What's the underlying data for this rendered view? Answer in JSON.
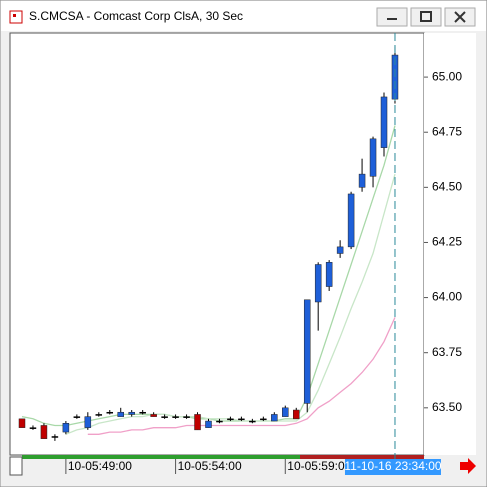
{
  "chart_data": {
    "type": "candlestick",
    "title": "S.CMCSA - Comcast Corp ClsA, 30 Sec",
    "categories": [
      null,
      null,
      null,
      null,
      "10-05:49:00",
      null,
      null,
      null,
      null,
      null,
      null,
      null,
      null,
      null,
      "10-05:54:00",
      null,
      null,
      null,
      null,
      null,
      null,
      null,
      null,
      null,
      "10-05:59:00",
      null,
      null,
      null,
      null,
      null,
      null,
      null,
      null,
      null,
      null
    ],
    "open": [
      63.45,
      63.41,
      63.42,
      63.37,
      63.39,
      63.46,
      63.41,
      63.47,
      63.48,
      63.46,
      63.47,
      63.48,
      63.47,
      63.46,
      63.46,
      63.46,
      63.47,
      63.41,
      63.44,
      63.45,
      63.45,
      63.44,
      63.45,
      63.44,
      63.46,
      63.49,
      63.52,
      63.98,
      64.05,
      64.2,
      64.23,
      64.5,
      64.55,
      64.68,
      64.9
    ],
    "high": [
      63.45,
      63.42,
      63.43,
      63.38,
      63.44,
      63.47,
      63.48,
      63.48,
      63.49,
      63.5,
      63.49,
      63.49,
      63.48,
      63.47,
      63.47,
      63.47,
      63.48,
      63.45,
      63.45,
      63.46,
      63.46,
      63.45,
      63.46,
      63.48,
      63.51,
      63.5,
      63.99,
      64.16,
      64.17,
      64.26,
      64.48,
      64.63,
      64.73,
      64.93,
      65.14
    ],
    "low": [
      63.41,
      63.4,
      63.36,
      63.35,
      63.38,
      63.45,
      63.4,
      63.46,
      63.47,
      63.46,
      63.46,
      63.47,
      63.46,
      63.45,
      63.45,
      63.45,
      63.4,
      63.41,
      63.43,
      63.44,
      63.44,
      63.43,
      63.44,
      63.44,
      63.46,
      63.45,
      63.48,
      63.85,
      64.03,
      64.18,
      64.22,
      64.48,
      64.5,
      64.64,
      64.88
    ],
    "close": [
      63.41,
      63.41,
      63.36,
      63.37,
      63.43,
      63.46,
      63.46,
      63.47,
      63.48,
      63.48,
      63.48,
      63.48,
      63.46,
      63.46,
      63.46,
      63.46,
      63.4,
      63.44,
      63.44,
      63.45,
      63.45,
      63.44,
      63.45,
      63.47,
      63.5,
      63.45,
      63.99,
      64.15,
      64.16,
      64.23,
      64.47,
      64.56,
      64.72,
      64.91,
      65.1
    ],
    "up_color": "#1e5fd8",
    "down_color": "#c00000",
    "moving_averages": [
      {
        "color": "#a8d8a8",
        "values": [
          63.46,
          63.45,
          63.43,
          63.42,
          63.42,
          63.43,
          63.44,
          63.45,
          63.46,
          63.47,
          63.47,
          63.47,
          63.47,
          63.47,
          63.46,
          63.46,
          63.45,
          63.45,
          63.44,
          63.44,
          63.44,
          63.44,
          63.44,
          63.44,
          63.45,
          63.45,
          63.55,
          63.7,
          63.85,
          64.0,
          64.15,
          64.3,
          64.45,
          64.6,
          64.78
        ]
      },
      {
        "color": "#c8e6c8",
        "values": [
          null,
          null,
          null,
          null,
          63.38,
          63.4,
          63.41,
          63.43,
          63.44,
          63.45,
          63.46,
          63.46,
          63.47,
          63.47,
          63.46,
          63.46,
          63.46,
          63.45,
          63.45,
          63.45,
          63.44,
          63.44,
          63.44,
          63.44,
          63.44,
          63.44,
          63.48,
          63.58,
          63.7,
          63.82,
          63.95,
          64.07,
          64.2,
          64.38,
          64.56
        ]
      },
      {
        "color": "#f0a0c8",
        "values": [
          null,
          null,
          null,
          null,
          null,
          null,
          63.38,
          63.38,
          63.39,
          63.39,
          63.4,
          63.4,
          63.41,
          63.41,
          63.41,
          63.42,
          63.42,
          63.42,
          63.42,
          63.42,
          63.42,
          63.42,
          63.42,
          63.42,
          63.42,
          63.43,
          63.45,
          63.5,
          63.53,
          63.57,
          63.61,
          63.66,
          63.72,
          63.8,
          63.91
        ]
      }
    ],
    "crosshair_label": "11-10-16 23:34:00",
    "ylim": [
      63.286,
      65.2
    ],
    "yticks": [
      {
        "value": 63.5,
        "label": "63.50"
      },
      63.75,
      {
        "value": 64,
        "label": "64.00"
      },
      64.25,
      {
        "value": 64.5,
        "label": "64.50"
      },
      64.75,
      {
        "value": 65,
        "label": "65.00"
      }
    ]
  }
}
